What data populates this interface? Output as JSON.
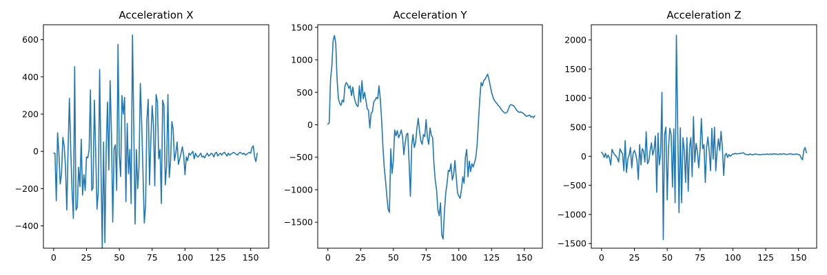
{
  "chart_data": [
    {
      "type": "line",
      "title": "Acceleration X",
      "xlabel": "",
      "ylabel": "",
      "xlim": [
        -7.8,
        163.8
      ],
      "ylim": [
        -520,
        680
      ],
      "xticks": [
        0,
        25,
        50,
        75,
        100,
        125,
        150
      ],
      "yticks": [
        -400,
        -200,
        0,
        200,
        400,
        600
      ],
      "grid": false,
      "color": "#1f77b4",
      "series": [
        {
          "values": [
            -10,
            -10,
            -265,
            100,
            -10,
            -175,
            -120,
            75,
            30,
            -80,
            -315,
            20,
            285,
            10,
            -210,
            -360,
            455,
            -315,
            -300,
            -85,
            -190,
            65,
            -235,
            -125,
            -210,
            -30,
            -35,
            10,
            330,
            -210,
            -195,
            275,
            0,
            -310,
            -215,
            440,
            -65,
            -520,
            50,
            -490,
            10,
            265,
            -100,
            380,
            100,
            -380,
            15,
            35,
            -210,
            575,
            -20,
            -135,
            300,
            200,
            290,
            -270,
            150,
            -120,
            10,
            -280,
            625,
            140,
            -390,
            10,
            -200,
            -80,
            365,
            160,
            -110,
            -385,
            -290,
            170,
            280,
            -180,
            60,
            245,
            140,
            -185,
            305,
            265,
            -40,
            10,
            -280,
            275,
            245,
            -180,
            -80,
            305,
            -140,
            -55,
            160,
            120,
            -50,
            -10,
            50,
            -70,
            -40,
            -10,
            25,
            -20,
            -125,
            -30,
            -50,
            -10,
            -20,
            -10,
            0,
            -40,
            -10,
            -25,
            -30,
            -20,
            -10,
            -30,
            -25,
            -35,
            -20,
            -10,
            -25,
            -20,
            -10,
            -15,
            -30,
            -10,
            -5,
            -25,
            -15,
            -10,
            -20,
            -10,
            -5,
            -15,
            -25,
            -10,
            -20,
            -15,
            -10,
            -5,
            -10,
            -15,
            -20,
            -10,
            -5,
            -10,
            -15,
            -10,
            -20,
            -15,
            -10,
            -5,
            -10,
            20,
            30,
            -30,
            -55,
            -10
          ]
        }
      ]
    },
    {
      "type": "line",
      "title": "Acceleration Y",
      "xlabel": "",
      "ylabel": "",
      "xlim": [
        -7.8,
        163.8
      ],
      "ylim": [
        -1900,
        1540
      ],
      "xticks": [
        0,
        25,
        50,
        75,
        100,
        125,
        150
      ],
      "yticks": [
        -1500,
        -1000,
        -500,
        0,
        500,
        1000,
        1500
      ],
      "grid": false,
      "color": "#1f77b4",
      "series": [
        {
          "values": [
            10,
            30,
            700,
            900,
            1300,
            1375,
            1250,
            700,
            400,
            330,
            300,
            380,
            350,
            600,
            650,
            620,
            560,
            600,
            450,
            580,
            430,
            350,
            300,
            280,
            600,
            350,
            680,
            400,
            500,
            380,
            250,
            220,
            -50,
            180,
            200,
            350,
            380,
            420,
            400,
            600,
            400,
            80,
            -330,
            -650,
            -860,
            -1100,
            -1300,
            -1350,
            -370,
            -750,
            -550,
            -80,
            -170,
            -90,
            -200,
            -150,
            -80,
            -180,
            -460,
            -280,
            -150,
            -130,
            -580,
            -1100,
            -320,
            -150,
            -350,
            -270,
            -50,
            100,
            -100,
            -250,
            -300,
            -150,
            -180,
            80,
            -200,
            -300,
            -50,
            -160,
            -200,
            -600,
            -860,
            -1000,
            -1310,
            -1400,
            -1200,
            -1700,
            -1760,
            -1330,
            -1050,
            -900,
            -700,
            -720,
            -600,
            -850,
            -770,
            -550,
            -800,
            -1050,
            -1100,
            -1130,
            -1000,
            -800,
            -900,
            -500,
            -380,
            -800,
            -560,
            -720,
            -600,
            -650,
            -580,
            -500,
            -300,
            50,
            400,
            650,
            600,
            680,
            700,
            740,
            780,
            700,
            600,
            500,
            430,
            380,
            350,
            330,
            300,
            280,
            250,
            220,
            200,
            180,
            180,
            200,
            250,
            300,
            310,
            300,
            290,
            260,
            230,
            210,
            190,
            200,
            190,
            180,
            160,
            140,
            130,
            140,
            150,
            120,
            130,
            110,
            140
          ]
        }
      ]
    },
    {
      "type": "line",
      "title": "Acceleration Z",
      "xlabel": "",
      "ylabel": "",
      "xlim": [
        -7.8,
        163.8
      ],
      "ylim": [
        -1580,
        2260
      ],
      "xticks": [
        0,
        25,
        50,
        75,
        100,
        125,
        150
      ],
      "yticks": [
        -1500,
        -1000,
        -500,
        0,
        500,
        1000,
        1500,
        2000
      ],
      "grid": false,
      "color": "#1f77b4",
      "series": [
        {
          "values": [
            70,
            40,
            -20,
            50,
            -30,
            20,
            -30,
            -150,
            120,
            60,
            30,
            0,
            -30,
            -100,
            130,
            80,
            40,
            -250,
            270,
            -280,
            -50,
            20,
            150,
            -200,
            50,
            100,
            40,
            -80,
            -400,
            200,
            -150,
            130,
            90,
            -100,
            420,
            -130,
            -80,
            100,
            230,
            20,
            120,
            350,
            -620,
            400,
            -150,
            50,
            1100,
            -1430,
            370,
            500,
            -750,
            140,
            480,
            370,
            -530,
            470,
            -800,
            2080,
            500,
            -970,
            490,
            -800,
            320,
            100,
            -450,
            320,
            -600,
            150,
            320,
            -350,
            680,
            -100,
            220,
            80,
            -200,
            100,
            650,
            130,
            200,
            -450,
            150,
            330,
            80,
            -250,
            480,
            -50,
            500,
            -250,
            100,
            300,
            100,
            430,
            150,
            -330,
            20,
            50,
            -20,
            30,
            0,
            20,
            40,
            40,
            50,
            40,
            45,
            45,
            50,
            55,
            60,
            40,
            30,
            30,
            25,
            40,
            30,
            25,
            30,
            40,
            35,
            30,
            30,
            25,
            30,
            35,
            30,
            35,
            40,
            30,
            35,
            40,
            30,
            45,
            35,
            40,
            30,
            35,
            40,
            30,
            45,
            40,
            35,
            30,
            35,
            40,
            45,
            30,
            35,
            30,
            40,
            35,
            30,
            20,
            -30,
            -60,
            100,
            150,
            60
          ]
        }
      ]
    }
  ]
}
